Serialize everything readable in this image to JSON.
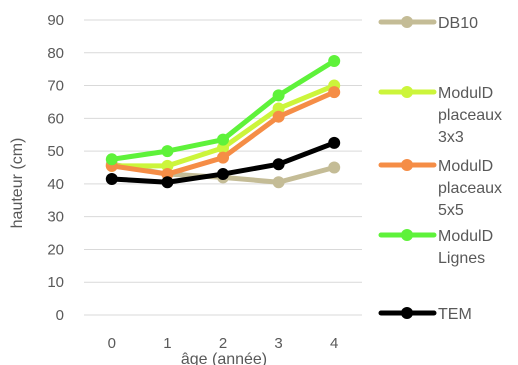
{
  "chart_data": {
    "type": "line",
    "categories": [
      "0",
      "1",
      "2",
      "3",
      "4"
    ],
    "xlabel": "âge (année)",
    "ylabel": "hauteur (cm)",
    "ylim": [
      0,
      90
    ],
    "yticks": [
      0,
      10,
      20,
      30,
      40,
      50,
      60,
      70,
      80,
      90
    ],
    "grid": true,
    "legend_position": "right",
    "series": [
      {
        "name": "DB10",
        "label_lines": [
          "DB10"
        ],
        "color": "#c4bc96",
        "values": [
          46,
          43,
          42,
          40.5,
          45
        ]
      },
      {
        "name": "ModulD placeaux 3x3",
        "label_lines": [
          "ModulD",
          "placeaux",
          "3x3"
        ],
        "color": "#ccf53b",
        "values": [
          45.5,
          45.5,
          51,
          63,
          70
        ]
      },
      {
        "name": "ModulD placeaux 5x5",
        "label_lines": [
          "ModulD",
          "placeaux",
          "5x5"
        ],
        "color": "#f58d46",
        "values": [
          45.5,
          43,
          48,
          60.5,
          68
        ]
      },
      {
        "name": "ModulD Lignes",
        "label_lines": [
          "ModulD",
          "Lignes"
        ],
        "color": "#5ef23a",
        "values": [
          47.5,
          50,
          53.5,
          67,
          77.5
        ]
      },
      {
        "name": "TEM",
        "label_lines": [
          "TEM"
        ],
        "color": "#000000",
        "values": [
          41.5,
          40.5,
          43,
          46,
          52.5
        ]
      }
    ]
  }
}
